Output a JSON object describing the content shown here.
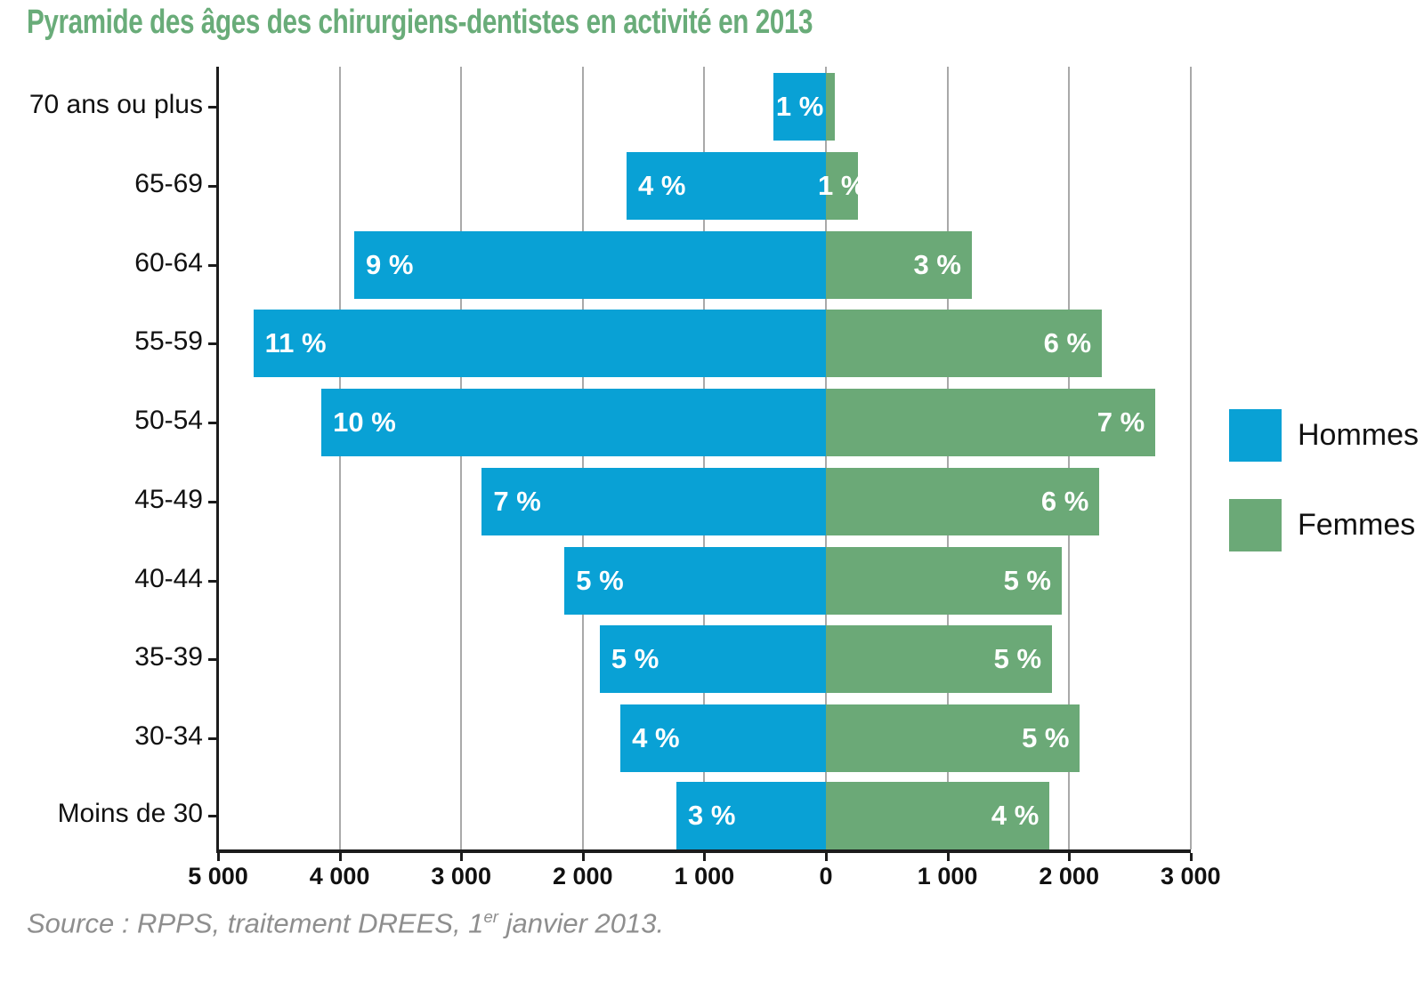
{
  "title": "Pyramide des âges des chirurgiens-dentistes en activité en 2013",
  "source": {
    "prefix": "Source : RPPS, traitement DREES, 1",
    "sup": "er",
    "suffix": " janvier 2013."
  },
  "legend": [
    {
      "label": "Hommes",
      "color": "#09a1d5"
    },
    {
      "label": "Femmes",
      "color": "#6ba977"
    }
  ],
  "colors": {
    "hommes": "#09a1d5",
    "femmes": "#6ba977",
    "title": "#69ac79",
    "grid": "#a9a9a9",
    "axis": "#1c1c1c",
    "bar_label": "#ffffff",
    "source_text": "#8e8e8e"
  },
  "chart_data": {
    "type": "bar",
    "variant": "population-pyramid",
    "orientation": "horizontal",
    "title": "Pyramide des âges des chirurgiens-dentistes en activité en 2013",
    "categories": [
      "70 ans ou plus",
      "65-69",
      "60-64",
      "55-59",
      "50-54",
      "45-49",
      "40-44",
      "35-39",
      "30-34",
      "Moins de 30"
    ],
    "series": [
      {
        "name": "Hommes",
        "side": "left",
        "color": "#09a1d5",
        "values": [
          430,
          1640,
          3880,
          4710,
          4150,
          2830,
          2150,
          1860,
          1690,
          1230
        ],
        "percent_labels": [
          "1 %",
          "4 %",
          "9 %",
          "11 %",
          "10 %",
          "7 %",
          "5 %",
          "5 %",
          "4 %",
          "3 %"
        ]
      },
      {
        "name": "Femmes",
        "side": "right",
        "color": "#6ba977",
        "values": [
          70,
          260,
          1200,
          2270,
          2710,
          2250,
          1940,
          1860,
          2090,
          1840
        ],
        "percent_labels": [
          "",
          "1 %",
          "3 %",
          "6 %",
          "7 %",
          "6 %",
          "5 %",
          "5 %",
          "5 %",
          "4 %"
        ]
      }
    ],
    "x_ticks": [
      {
        "value": -5000,
        "label": "5 000"
      },
      {
        "value": -4000,
        "label": "4 000"
      },
      {
        "value": -3000,
        "label": "3 000"
      },
      {
        "value": -2000,
        "label": "2 000"
      },
      {
        "value": -1000,
        "label": "1 000"
      },
      {
        "value": 0,
        "label": "0"
      },
      {
        "value": 1000,
        "label": "1 000"
      },
      {
        "value": 2000,
        "label": "2 000"
      },
      {
        "value": 3000,
        "label": "3 000"
      }
    ],
    "xlim": [
      -5000,
      3000
    ],
    "grid": true,
    "legend_position": "right"
  }
}
